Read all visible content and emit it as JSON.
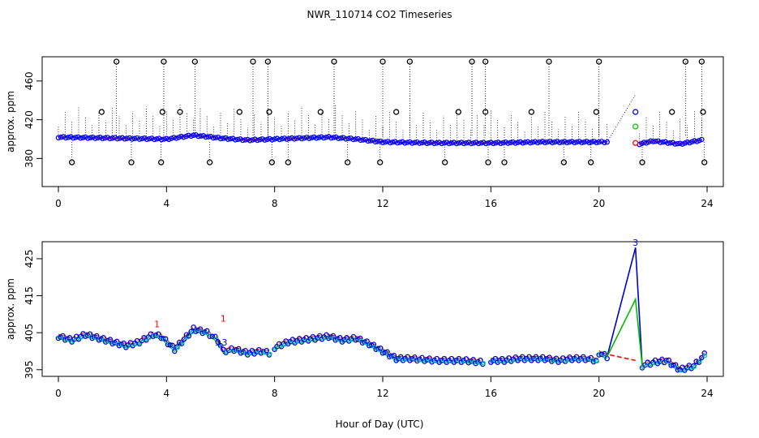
{
  "figure": {
    "title": "NWR_110714  CO2 Timeseries",
    "xlabel": "Hour of Day (UTC)"
  },
  "chart_data": [
    {
      "type": "scatter",
      "panel": "top",
      "ylabel": "approx. ppm",
      "xlim": [
        -0.6,
        24.6
      ],
      "ylim": [
        351,
        485
      ],
      "xticks": [
        0,
        4,
        8,
        12,
        16,
        20,
        24
      ],
      "yticks": [
        380,
        420,
        460
      ],
      "grid": false,
      "colors": {
        "raw": "#000000",
        "mean": "#ff0000",
        "flag1": "#0000ff",
        "flag2": "#00cc00",
        "flag3": "#00ffff"
      },
      "segments": [
        {
          "x": [
            0,
            2,
            4,
            5,
            6,
            7,
            8,
            10,
            11,
            12,
            14,
            16,
            18,
            20,
            20.3
          ],
          "y": [
            402,
            401,
            400,
            404,
            401,
            399,
            400,
            402,
            400,
            397,
            396,
            396,
            397,
            397,
            397
          ]
        },
        {
          "x": [
            21.5,
            22,
            23,
            23.8
          ],
          "y": [
            395,
            398,
            395,
            399
          ]
        }
      ],
      "high_outliers": [
        2.15,
        3.9,
        5.05,
        7.2,
        7.75,
        10.2,
        12.0,
        13.0,
        15.3,
        15.8,
        18.15,
        20.0,
        23.2,
        23.8
      ],
      "high_value": 480,
      "low_outliers": [
        0.5,
        2.7,
        3.8,
        5.6,
        7.9,
        8.5,
        10.7,
        11.9,
        14.3,
        15.9,
        16.5,
        18.7,
        19.7,
        21.6,
        23.9
      ],
      "low_value": 376,
      "mid_outliers": [
        {
          "x": 1.6,
          "y": 428
        },
        {
          "x": 3.85,
          "y": 428
        },
        {
          "x": 4.5,
          "y": 428
        },
        {
          "x": 6.7,
          "y": 428
        },
        {
          "x": 7.8,
          "y": 428
        },
        {
          "x": 9.7,
          "y": 428
        },
        {
          "x": 12.5,
          "y": 428
        },
        {
          "x": 14.8,
          "y": 428
        },
        {
          "x": 15.8,
          "y": 428
        },
        {
          "x": 17.5,
          "y": 428
        },
        {
          "x": 19.9,
          "y": 428
        },
        {
          "x": 22.7,
          "y": 428
        },
        {
          "x": 23.85,
          "y": 428
        }
      ],
      "gap_points": [
        {
          "x": 21.35,
          "y": 428,
          "color": "#0000ff"
        },
        {
          "x": 21.35,
          "y": 413,
          "color": "#00cc00"
        },
        {
          "x": 21.35,
          "y": 396,
          "color": "#ff0000"
        }
      ]
    },
    {
      "type": "line",
      "panel": "bottom",
      "ylabel": "approx. ppm",
      "xlim": [
        -0.6,
        24.6
      ],
      "ylim": [
        393.2,
        429.6
      ],
      "xticks": [
        0,
        4,
        8,
        12,
        16,
        20,
        24
      ],
      "yticks": [
        395,
        405,
        415,
        425
      ],
      "grid": false,
      "segments": [
        {
          "x": [
            0,
            0.5,
            1,
            1.5,
            2,
            2.5,
            3,
            3.5,
            3.8,
            4.3,
            5,
            5.5,
            5.9,
            6.1,
            6.5,
            7,
            7.5,
            7.8
          ],
          "y": [
            404,
            403,
            404.5,
            403.5,
            402.5,
            401.5,
            402.5,
            404.5,
            404,
            400.5,
            406,
            405,
            403,
            400,
            400.5,
            399.5,
            400,
            399.5
          ]
        },
        {
          "x": [
            8,
            8.5,
            9,
            9.5,
            10,
            10.5,
            11,
            11.5,
            12,
            12.5,
            13,
            14,
            15,
            15.7
          ],
          "y": [
            401,
            402.5,
            403,
            403.5,
            404,
            403,
            403.5,
            402,
            400,
            398,
            398,
            397.5,
            397.5,
            397
          ]
        },
        {
          "x": [
            16,
            16.5,
            17,
            17.5,
            18,
            18.5,
            19,
            19.5,
            19.9
          ],
          "y": [
            397.5,
            397.5,
            398,
            398,
            398,
            397.5,
            398,
            398,
            397.5
          ]
        },
        {
          "x": [
            20,
            20.3
          ],
          "y": [
            399.5,
            398.5
          ]
        },
        {
          "x": [
            21.6,
            22,
            22.5,
            23,
            23.5,
            23.9
          ],
          "y": [
            396,
            397,
            397.5,
            395,
            396,
            399
          ]
        }
      ],
      "gap_lines": [
        {
          "name": "blue",
          "x": [
            20.3,
            21.35,
            21.6
          ],
          "y": [
            398.5,
            428,
            396
          ],
          "color": "#0000cc"
        },
        {
          "name": "green",
          "x": [
            20.3,
            21.35,
            21.6
          ],
          "y": [
            398.5,
            414,
            396
          ],
          "color": "#00bb00"
        },
        {
          "name": "red",
          "x": [
            20.4,
            21.35
          ],
          "y": [
            399,
            397.5
          ],
          "color": "#ff0000"
        }
      ],
      "labels": [
        {
          "text": "1",
          "x": 3.65,
          "y": 406.5,
          "color": "#ff0000"
        },
        {
          "text": "1",
          "x": 6.1,
          "y": 408,
          "color": "#ff0000"
        },
        {
          "text": "3",
          "x": 5.9,
          "y": 401.5,
          "color": "#0000ff"
        },
        {
          "text": "3",
          "x": 6.15,
          "y": 401.5,
          "color": "#0000ff"
        },
        {
          "text": "3",
          "x": 21.35,
          "y": 428.5,
          "color": "#0000ff"
        }
      ]
    }
  ]
}
